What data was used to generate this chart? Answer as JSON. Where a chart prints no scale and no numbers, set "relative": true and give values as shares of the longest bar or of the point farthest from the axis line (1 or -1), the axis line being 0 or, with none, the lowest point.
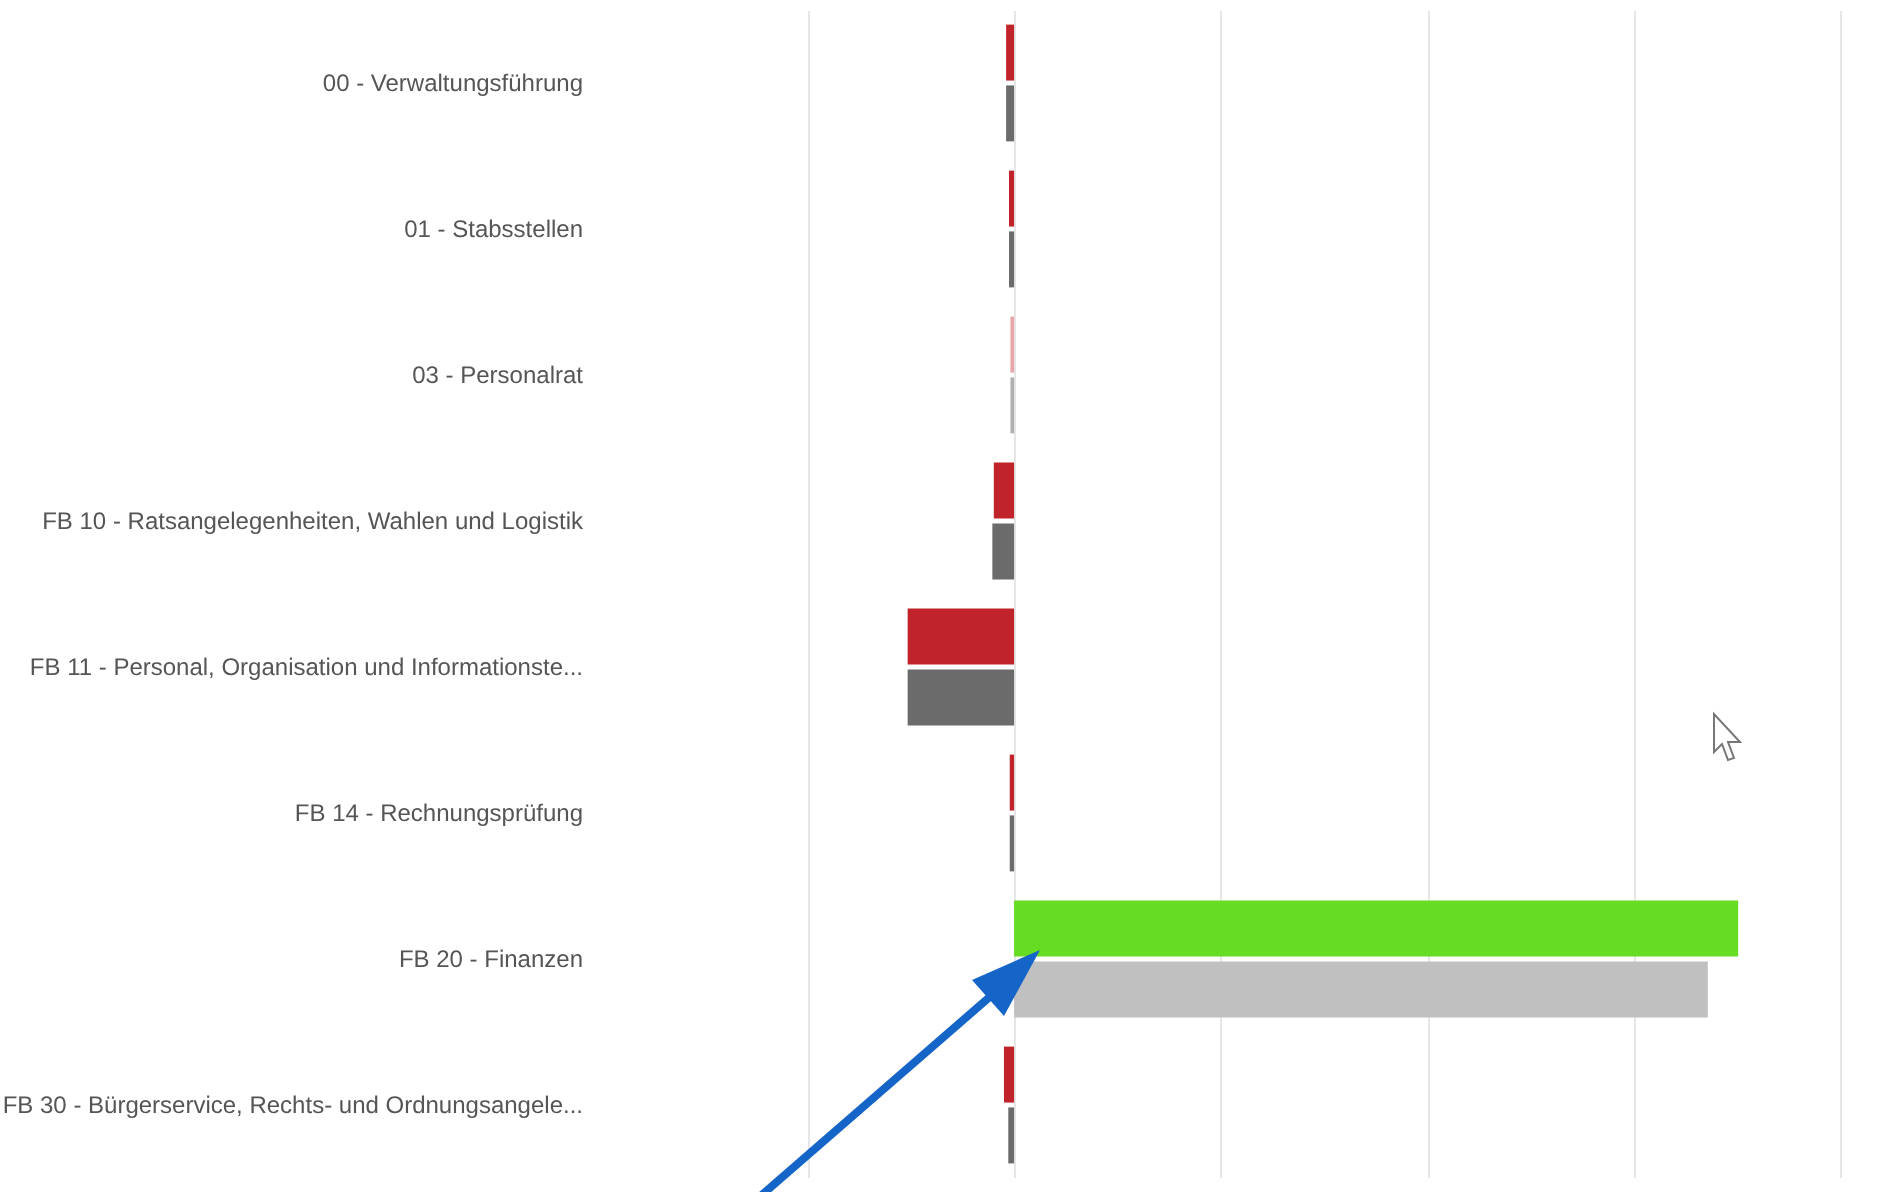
{
  "chart_data": {
    "type": "bar",
    "orientation": "horizontal",
    "relative": true,
    "grid": "x",
    "categories": [
      "00 - Verwaltungsführung",
      "01 - Stabsstellen",
      "03 - Personalrat",
      "FB 10 - Ratsangelegenheiten, Wahlen und Logistik",
      "FB 11 - Personal, Organisation und Informationste...",
      "FB 14 - Rechnungsprüfung",
      "FB 20 - Finanzen",
      "FB 30 - Bürgerservice, Rechts- und Ordnungsangele..."
    ],
    "series": [
      {
        "colors": [
          "#c0242a",
          "#c0242a",
          "#e8a5a8",
          "#c0242a",
          "#c0242a",
          "#c0242a",
          "#66dd22",
          "#c0242a"
        ],
        "values": [
          -0.011,
          -0.007,
          -0.005,
          -0.028,
          -0.147,
          -0.006,
          1,
          -0.014
        ]
      },
      {
        "colors": [
          "#6b6b6b",
          "#6b6b6b",
          "#b0b0b0",
          "#6b6b6b",
          "#6b6b6b",
          "#6b6b6b",
          "#c0c0c0",
          "#6b6b6b"
        ],
        "values": [
          -0.011,
          -0.007,
          -0.005,
          -0.03,
          -0.147,
          -0.006,
          0.958,
          -0.008
        ]
      }
    ]
  }
}
